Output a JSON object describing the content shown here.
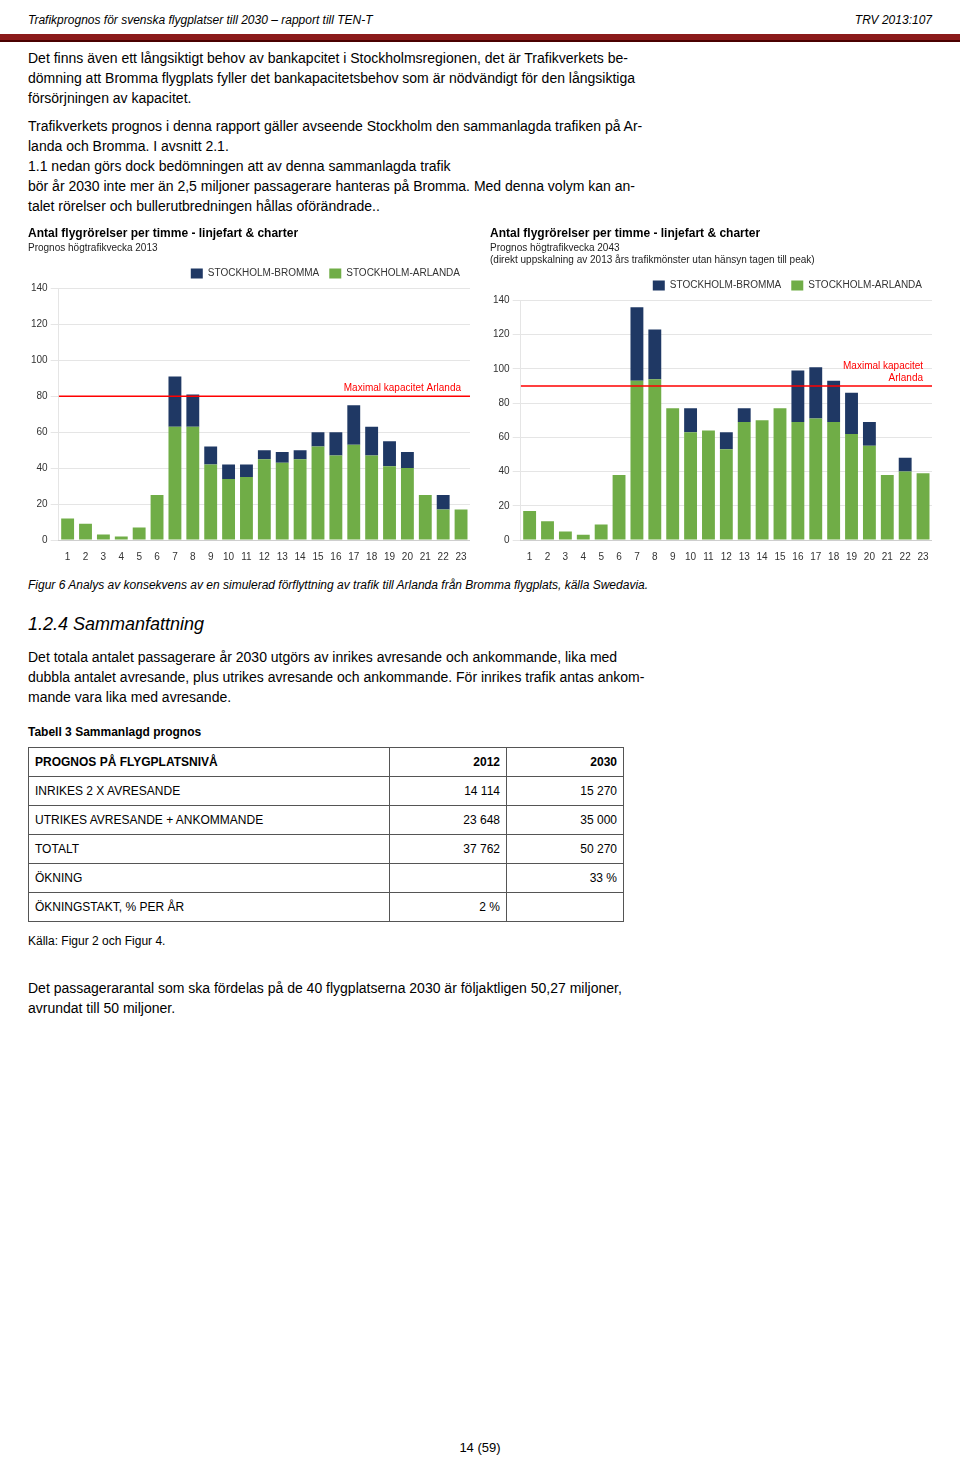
{
  "header_left": "Trafikprognos för svenska flygplatser till 2030 – rapport till TEN-T",
  "header_right": "TRV 2013:107",
  "body_text": [
    [
      "Det finns även ett långsiktigt behov av bankapcitet i Stockholmsregionen, det är Trafikverkets be-",
      "dömning att Bromma flygplats fyller det bankapacitetsbehov som är nödvändigt för den långsiktiga",
      "försörjningen av kapacitet."
    ],
    [
      "Trafikverkets prognos i denna rapport gäller avseende Stockholm den sammanlagda trafiken på Ar-",
      "landa och Bromma. I avsnitt 2.1.",
      "1.1 nedan görs dock bedömningen att av denna sammanlagda trafik",
      "bör år 2030 inte mer än 2,5 miljoner passagerare hanteras på Bromma. Med denna volym kan an-",
      "talet rörelser och bullerutbredningen hållas oförändrade.."
    ]
  ],
  "chart_data": [
    {
      "type": "bar",
      "title": "Antal flygrörelser per timme - linjefart & charter",
      "subtitle": "Prognos högtrafikvecka 2013",
      "categories": [
        1,
        2,
        3,
        4,
        5,
        6,
        7,
        8,
        9,
        10,
        11,
        12,
        13,
        14,
        15,
        16,
        17,
        18,
        19,
        20,
        21,
        22,
        23
      ],
      "series": [
        {
          "name": "STOCKHOLM-ARLANDA",
          "color": "#70AD47",
          "values": [
            12,
            9,
            3,
            2,
            7,
            25,
            63,
            63,
            42,
            34,
            35,
            45,
            43,
            45,
            52,
            47,
            53,
            47,
            41,
            40,
            25,
            17,
            17
          ]
        },
        {
          "name": "STOCKHOLM-BROMMA",
          "color": "#1F3864",
          "values": [
            0,
            0,
            0,
            0,
            0,
            0,
            28,
            18,
            10,
            8,
            7,
            5,
            6,
            5,
            8,
            13,
            22,
            16,
            14,
            9,
            0,
            8,
            0
          ]
        }
      ],
      "stacked": true,
      "ylim": [
        0,
        140
      ],
      "yticks": [
        0,
        20,
        40,
        60,
        80,
        100,
        120,
        140
      ],
      "grid": true,
      "legend": "upper right",
      "hlines": [
        {
          "value": 80,
          "label": "Maximal kapacitet Arlanda",
          "color": "#FF0000"
        }
      ]
    },
    {
      "type": "bar",
      "title": "Antal flygrörelser per timme - linjefart & charter",
      "subtitle": [
        "Prognos högtrafikvecka 2043",
        "(direkt uppskalning av 2013 års trafikmönster utan hänsyn tagen till peak)"
      ],
      "categories": [
        1,
        2,
        3,
        4,
        5,
        6,
        7,
        8,
        9,
        10,
        11,
        12,
        13,
        14,
        15,
        16,
        17,
        18,
        19,
        20,
        21,
        22,
        23
      ],
      "series": [
        {
          "name": "STOCKHOLM-ARLANDA",
          "color": "#70AD47",
          "values": [
            17,
            11,
            5,
            3,
            9,
            38,
            93,
            94,
            77,
            63,
            64,
            53,
            69,
            70,
            77,
            69,
            71,
            69,
            62,
            55,
            38,
            40,
            39
          ]
        },
        {
          "name": "STOCKHOLM-BROMMA",
          "color": "#1F3864",
          "values": [
            0,
            0,
            0,
            0,
            0,
            0,
            43,
            29,
            0,
            14,
            0,
            10,
            8,
            0,
            0,
            30,
            30,
            24,
            24,
            14,
            0,
            8,
            0
          ]
        }
      ],
      "stacked": true,
      "ylim": [
        0,
        140
      ],
      "yticks": [
        0,
        20,
        40,
        60,
        80,
        100,
        120,
        140
      ],
      "grid": true,
      "legend": "upper right",
      "hlines": [
        {
          "value": 90,
          "label": "Maximal kapacitet\nArlanda",
          "color": "#FF0000"
        }
      ]
    }
  ],
  "figure_caption": "Figur 6 Analys av konsekvens av en simulerad förflyttning av trafik till Arlanda från Bromma flygplats, källa Swedavia.",
  "section_header": "1.2.4  Sammanfattning",
  "section_text": [
    "Det totala antalet passagerare år 2030 utgörs av inrikes avresande och ankommande, lika med",
    "dubbla antalet avresande, plus utrikes avresande och ankommande. För inrikes trafik antas ankom-",
    "mande vara lika med avresande."
  ],
  "table": {
    "title": "Tabell 3 Sammanlagd prognos",
    "columns": [
      "PROGNOS PÅ FLYGPLATSNIVÅ",
      "2012",
      "2030"
    ],
    "rows": [
      [
        "INRIKES 2 X AVRESANDE",
        "14 114",
        "15 270"
      ],
      [
        "UTRIKES AVRESANDE + ANKOMMANDE",
        "23 648",
        "35 000"
      ],
      [
        "TOTALT",
        "37 762",
        "50 270"
      ],
      [
        "ÖKNING",
        null,
        "33 %"
      ],
      [
        "ÖKNINGSTAKT, % PER ÅR",
        "2 %",
        null
      ]
    ]
  },
  "table_source": "Källa: Figur 2 och Figur 4.",
  "footer_text": [
    "Det passagerarantal som ska fördelas på de 40 flygplatserna 2030 är följaktligen 50,27 miljoner,",
    "avrundat till 50 miljoner."
  ],
  "page_number": "14 (59)"
}
